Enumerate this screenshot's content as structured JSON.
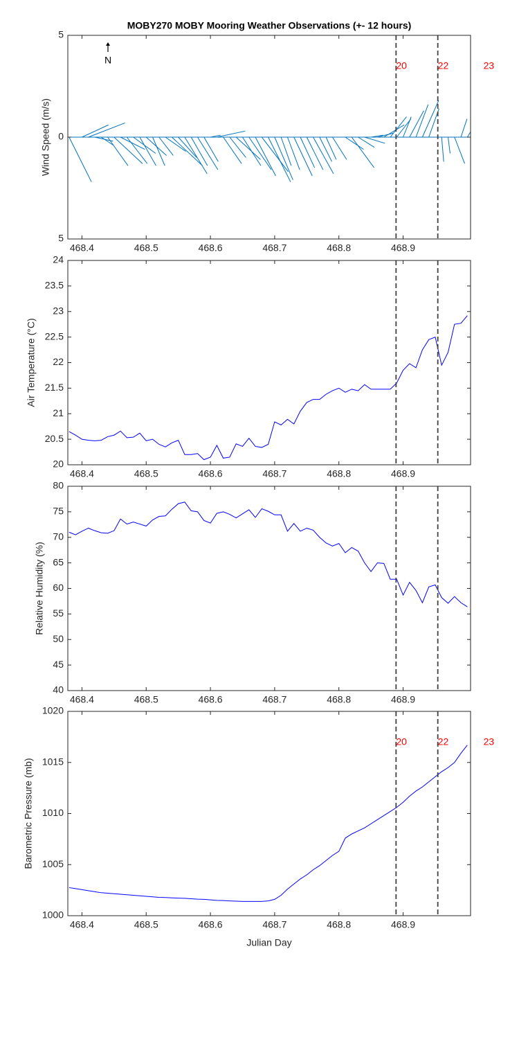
{
  "chart_data": [
    {
      "type": "stick",
      "title": "MOBY270 MOBY Mooring Weather Observations (+- 12 hours)",
      "ylabel": "Wind Speed (m/s)",
      "north_label": "N",
      "color": "#0072bd",
      "xlim": [
        468.378,
        469.005
      ],
      "xticks": [
        468.4,
        468.5,
        468.6,
        468.7,
        468.8,
        468.9
      ],
      "ylim": [
        -5,
        5
      ],
      "yticks": [
        {
          "value": -5,
          "label": "5"
        },
        0,
        5
      ],
      "vlines": [
        468.889,
        468.954
      ],
      "annotation_color": "#ff0000",
      "annotations": [
        {
          "text": "20",
          "x": 468.889
        },
        {
          "text": "22",
          "x": 468.954
        },
        {
          "text": "23",
          "x": 469.025
        }
      ],
      "x": [
        468.38,
        468.39,
        468.4,
        468.41,
        468.42,
        468.43,
        468.44,
        468.45,
        468.46,
        468.47,
        468.48,
        468.49,
        468.5,
        468.51,
        468.52,
        468.53,
        468.54,
        468.55,
        468.56,
        468.57,
        468.58,
        468.59,
        468.6,
        468.61,
        468.62,
        468.63,
        468.64,
        468.65,
        468.66,
        468.67,
        468.68,
        468.69,
        468.7,
        468.71,
        468.72,
        468.73,
        468.74,
        468.75,
        468.76,
        468.77,
        468.78,
        468.79,
        468.8,
        468.81,
        468.82,
        468.83,
        468.84,
        468.85,
        468.86,
        468.87,
        468.88,
        468.89,
        468.9,
        468.91,
        468.92,
        468.93,
        468.94,
        468.95,
        468.96,
        468.97,
        468.98,
        468.99,
        469.0
      ],
      "u": [
        1.1,
        0.5,
        1.3,
        1.8,
        0.9,
        0.6,
        1.0,
        1.4,
        1.2,
        1.0,
        1.1,
        0.8,
        1.0,
        0.6,
        0.7,
        1.0,
        1.5,
        0.9,
        1.1,
        0.8,
        1.0,
        0.7,
        0.5,
        1.4,
        0.9,
        0.8,
        1.2,
        0.9,
        1.1,
        1.0,
        1.3,
        1.1,
        0.9,
        0.5,
        0.6,
        0.9,
        0.7,
        0.8,
        1.0,
        0.6,
        0.5,
        0.7,
        0.5,
        0.9,
        1.1,
        0.8,
        1.0,
        0.6,
        0.8,
        1.0,
        0.8,
        0.7,
        0.4,
        0.7,
        0.6,
        0.8,
        0.5,
        0.1,
        0.1,
        0.1,
        0.5,
        0.3,
        0.6
      ],
      "values": [
        -2.2,
        0,
        0.6,
        0.7,
        -0.2,
        -0.4,
        -1.4,
        -1.3,
        -0.6,
        -1.3,
        -0.8,
        -1.4,
        -0.9,
        -1.4,
        -0.9,
        -0.7,
        -1.4,
        -1.0,
        -1.8,
        -1.4,
        -1.6,
        -1.2,
        0.1,
        0.3,
        -1.3,
        -1.0,
        -1.1,
        -1.4,
        -1.6,
        -1.9,
        -1.7,
        -2.2,
        -2.1,
        -1.4,
        -1.6,
        -1.9,
        -1.5,
        -1.6,
        -1.8,
        -1.2,
        -1.1,
        -1.1,
        0,
        -0.6,
        -1.5,
        -0.5,
        -0.3,
        0.1,
        0.2,
        0.6,
        1.0,
        0.9,
        1.0,
        1.3,
        1.6,
        1.8,
        1.4,
        0,
        -1.2,
        -0.8,
        -1.3,
        0.9,
        1.0
      ]
    },
    {
      "type": "line",
      "ylabel": "Air Temperature (°C)",
      "color": "#0000ff",
      "xlim": [
        468.378,
        469.005
      ],
      "xticks": [
        468.4,
        468.5,
        468.6,
        468.7,
        468.8,
        468.9
      ],
      "ylim": [
        20,
        24
      ],
      "yticks": [
        20,
        20.5,
        21,
        21.5,
        22,
        22.5,
        23,
        23.5,
        24
      ],
      "vlines": [
        468.889,
        468.954
      ],
      "x": [
        468.38,
        468.39,
        468.4,
        468.41,
        468.42,
        468.43,
        468.44,
        468.45,
        468.46,
        468.47,
        468.48,
        468.49,
        468.5,
        468.51,
        468.52,
        468.53,
        468.54,
        468.55,
        468.56,
        468.57,
        468.58,
        468.59,
        468.6,
        468.61,
        468.62,
        468.63,
        468.64,
        468.65,
        468.66,
        468.67,
        468.68,
        468.69,
        468.7,
        468.71,
        468.72,
        468.73,
        468.74,
        468.75,
        468.76,
        468.77,
        468.78,
        468.79,
        468.8,
        468.81,
        468.82,
        468.83,
        468.84,
        468.85,
        468.86,
        468.87,
        468.88,
        468.89,
        468.9,
        468.91,
        468.92,
        468.93,
        468.94,
        468.95,
        468.96,
        468.97,
        468.98,
        468.99,
        469.0
      ],
      "values": [
        20.65,
        20.58,
        20.5,
        20.48,
        20.47,
        20.48,
        20.55,
        20.58,
        20.66,
        20.53,
        20.54,
        20.62,
        20.47,
        20.5,
        20.4,
        20.35,
        20.43,
        20.48,
        20.2,
        20.2,
        20.22,
        20.1,
        20.15,
        20.38,
        20.13,
        20.15,
        20.41,
        20.36,
        20.52,
        20.36,
        20.34,
        20.4,
        20.84,
        20.78,
        20.89,
        20.8,
        21.05,
        21.22,
        21.28,
        21.28,
        21.38,
        21.45,
        21.5,
        21.42,
        21.48,
        21.45,
        21.57,
        21.48,
        21.48,
        21.48,
        21.48,
        21.6,
        21.85,
        21.98,
        21.9,
        22.25,
        22.45,
        22.5,
        21.95,
        22.2,
        22.75,
        22.77,
        22.92
      ]
    },
    {
      "type": "line",
      "ylabel": "Relative Humidity (%)",
      "color": "#0000ff",
      "xlim": [
        468.378,
        469.005
      ],
      "xticks": [
        468.4,
        468.5,
        468.6,
        468.7,
        468.8,
        468.9
      ],
      "ylim": [
        40,
        80
      ],
      "yticks": [
        40,
        45,
        50,
        55,
        60,
        65,
        70,
        75,
        80
      ],
      "vlines": [
        468.889,
        468.954
      ],
      "x": [
        468.38,
        468.39,
        468.4,
        468.41,
        468.42,
        468.43,
        468.44,
        468.45,
        468.46,
        468.47,
        468.48,
        468.49,
        468.5,
        468.51,
        468.52,
        468.53,
        468.54,
        468.55,
        468.56,
        468.57,
        468.58,
        468.59,
        468.6,
        468.61,
        468.62,
        468.63,
        468.64,
        468.65,
        468.66,
        468.67,
        468.68,
        468.69,
        468.7,
        468.71,
        468.72,
        468.73,
        468.74,
        468.75,
        468.76,
        468.77,
        468.78,
        468.79,
        468.8,
        468.81,
        468.82,
        468.83,
        468.84,
        468.85,
        468.86,
        468.87,
        468.88,
        468.89,
        468.9,
        468.91,
        468.92,
        468.93,
        468.94,
        468.95,
        468.96,
        468.97,
        468.98,
        468.99,
        469.0
      ],
      "values": [
        71.0,
        70.5,
        71.2,
        71.8,
        71.3,
        70.9,
        70.8,
        71.3,
        73.6,
        72.6,
        73.0,
        72.6,
        72.2,
        73.4,
        74.1,
        74.2,
        75.5,
        76.6,
        76.9,
        75.2,
        75.0,
        73.3,
        72.8,
        74.7,
        75.0,
        74.5,
        73.8,
        74.6,
        75.4,
        73.9,
        75.6,
        75.1,
        74.4,
        74.4,
        71.2,
        72.7,
        71.2,
        71.8,
        71.4,
        70.0,
        68.9,
        68.3,
        68.8,
        67.0,
        68.0,
        67.3,
        65.0,
        63.3,
        65.0,
        64.9,
        61.8,
        61.8,
        58.7,
        61.2,
        59.6,
        57.2,
        60.3,
        60.7,
        58.2,
        57.1,
        58.4,
        57.2,
        56.4
      ]
    },
    {
      "type": "line",
      "ylabel": "Barometric Pressure (mb)",
      "xlabel": "Julian Day",
      "color": "#0000ff",
      "xlim": [
        468.378,
        469.005
      ],
      "xticks": [
        468.4,
        468.5,
        468.6,
        468.7,
        468.8,
        468.9
      ],
      "ylim": [
        1000,
        1020
      ],
      "yticks": [
        1000,
        1005,
        1010,
        1015,
        1020
      ],
      "vlines": [
        468.889,
        468.954
      ],
      "annotation_color": "#ff0000",
      "annotations": [
        {
          "text": "20",
          "x": 468.889
        },
        {
          "text": "22",
          "x": 468.954
        },
        {
          "text": "23",
          "x": 469.025
        }
      ],
      "x": [
        468.38,
        468.39,
        468.4,
        468.41,
        468.42,
        468.43,
        468.44,
        468.45,
        468.46,
        468.47,
        468.48,
        468.49,
        468.5,
        468.51,
        468.52,
        468.53,
        468.54,
        468.55,
        468.56,
        468.57,
        468.58,
        468.59,
        468.6,
        468.61,
        468.62,
        468.63,
        468.64,
        468.65,
        468.66,
        468.67,
        468.68,
        468.69,
        468.7,
        468.71,
        468.72,
        468.73,
        468.74,
        468.75,
        468.76,
        468.77,
        468.78,
        468.79,
        468.8,
        468.81,
        468.82,
        468.83,
        468.84,
        468.85,
        468.86,
        468.87,
        468.88,
        468.89,
        468.9,
        468.91,
        468.92,
        468.93,
        468.94,
        468.95,
        468.96,
        468.97,
        468.98,
        468.99,
        469.0
      ],
      "values": [
        1002.75,
        1002.65,
        1002.55,
        1002.45,
        1002.35,
        1002.25,
        1002.2,
        1002.15,
        1002.1,
        1002.05,
        1002.0,
        1001.95,
        1001.9,
        1001.85,
        1001.8,
        1001.78,
        1001.75,
        1001.72,
        1001.7,
        1001.66,
        1001.62,
        1001.6,
        1001.55,
        1001.5,
        1001.48,
        1001.45,
        1001.42,
        1001.4,
        1001.4,
        1001.4,
        1001.4,
        1001.45,
        1001.6,
        1002.0,
        1002.6,
        1003.1,
        1003.6,
        1004.0,
        1004.5,
        1004.9,
        1005.4,
        1005.9,
        1006.3,
        1007.6,
        1008.0,
        1008.3,
        1008.6,
        1009.0,
        1009.4,
        1009.8,
        1010.2,
        1010.6,
        1011.1,
        1011.7,
        1012.2,
        1012.6,
        1013.1,
        1013.6,
        1014.1,
        1014.5,
        1015.0,
        1015.9,
        1016.7
      ]
    }
  ]
}
